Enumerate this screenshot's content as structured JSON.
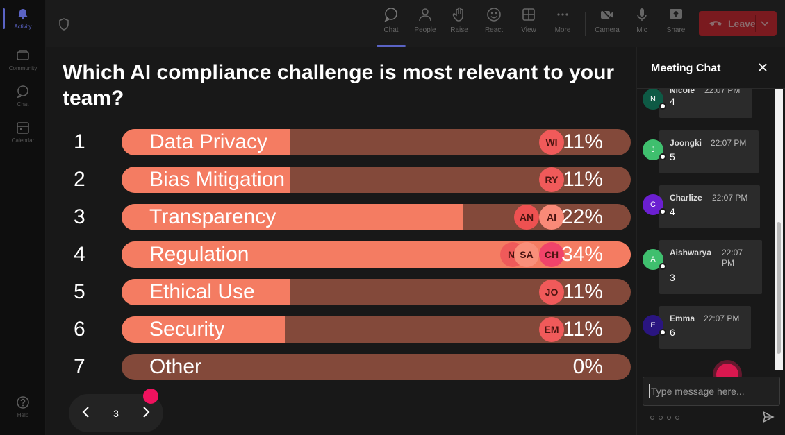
{
  "rail": {
    "items": [
      {
        "label": "Activity",
        "icon": "bell-icon",
        "active": true
      },
      {
        "label": "Community",
        "icon": "community-icon"
      },
      {
        "label": "Chat",
        "icon": "chat-icon"
      },
      {
        "label": "Calendar",
        "icon": "calendar-icon"
      },
      {
        "label": "Help",
        "icon": "help-icon"
      }
    ]
  },
  "toolbar": {
    "chat": "Chat",
    "people": "People",
    "raise": "Raise",
    "react": "React",
    "view": "View",
    "more": "More",
    "camera": "Camera",
    "mic": "Mic",
    "share": "Share",
    "leave": "Leave"
  },
  "poll": {
    "question": "Which AI compliance challenge is most relevant to your team?",
    "options": [
      {
        "num": "1",
        "label": "Data Privacy",
        "pct": "11%",
        "fill": 0.33,
        "avatars": [
          {
            "initials": "WI",
            "color": "#f05a5a"
          }
        ]
      },
      {
        "num": "2",
        "label": "Bias Mitigation",
        "pct": "11%",
        "fill": 0.33,
        "avatars": [
          {
            "initials": "RY",
            "color": "#f05a5a"
          }
        ]
      },
      {
        "num": "3",
        "label": "Transparency",
        "pct": "22%",
        "fill": 0.67,
        "avatars": [
          {
            "initials": "AI",
            "color": "#f98a78"
          },
          {
            "initials": "AN",
            "color": "#ee5151"
          }
        ]
      },
      {
        "num": "4",
        "label": "Regulation",
        "pct": "34%",
        "fill": 1.0,
        "avatars": [
          {
            "initials": "CH",
            "color": "#f0436a"
          },
          {
            "initials": "SA",
            "color": "#f98f7a"
          },
          {
            "initials": "NI",
            "color": "#ef5a5a"
          }
        ]
      },
      {
        "num": "5",
        "label": "Ethical Use",
        "pct": "11%",
        "fill": 0.33,
        "avatars": [
          {
            "initials": "JO",
            "color": "#f05a5a"
          }
        ]
      },
      {
        "num": "6",
        "label": "Security",
        "pct": "11%",
        "fill": 0.32,
        "avatars": [
          {
            "initials": "EM",
            "color": "#f05a5a"
          }
        ]
      },
      {
        "num": "7",
        "label": "Other",
        "pct": "0%",
        "fill": 0,
        "avatars": []
      }
    ],
    "page": "3"
  },
  "chat": {
    "title": "Meeting Chat",
    "messages": [
      {
        "initial": "N",
        "name": "Nicole",
        "time": "22:07 PM",
        "text": "4",
        "color": "#0e5a45"
      },
      {
        "initial": "J",
        "name": "Joongki",
        "time": "22:07 PM",
        "text": "5",
        "color": "#3fbf6e"
      },
      {
        "initial": "C",
        "name": "Charlize",
        "time": "22:07 PM",
        "text": "4",
        "color": "#6b1fd1"
      },
      {
        "initial": "A",
        "name": "Aishwarya",
        "time": "22:07 PM",
        "text": "3",
        "color": "#3fbf6e"
      },
      {
        "initial": "E",
        "name": "Emma",
        "time": "22:07 PM",
        "text": "6",
        "color": "#2a1580"
      }
    ],
    "placeholder": "Type message here..."
  }
}
